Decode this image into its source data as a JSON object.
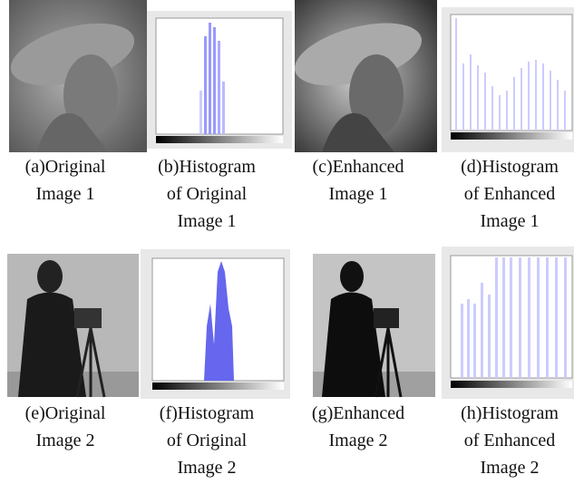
{
  "panels": [
    {
      "caption": [
        "(a)Original",
        "Image 1"
      ]
    },
    {
      "caption": [
        "(b)Histogram",
        "of Original",
        "Image 1"
      ]
    },
    {
      "caption": [
        "(c)Enhanced",
        "Image 1"
      ]
    },
    {
      "caption": [
        "(d)Histogram",
        "of Enhanced",
        "Image 1"
      ]
    },
    {
      "caption": [
        "(e)Original",
        "Image 2"
      ]
    },
    {
      "caption": [
        "(f)Histogram",
        "of Original",
        "Image 2"
      ]
    },
    {
      "caption": [
        "(g)Enhanced",
        "Image 2"
      ]
    },
    {
      "caption": [
        "(h)Histogram",
        "of Enhanced",
        "Image 2"
      ]
    }
  ]
}
